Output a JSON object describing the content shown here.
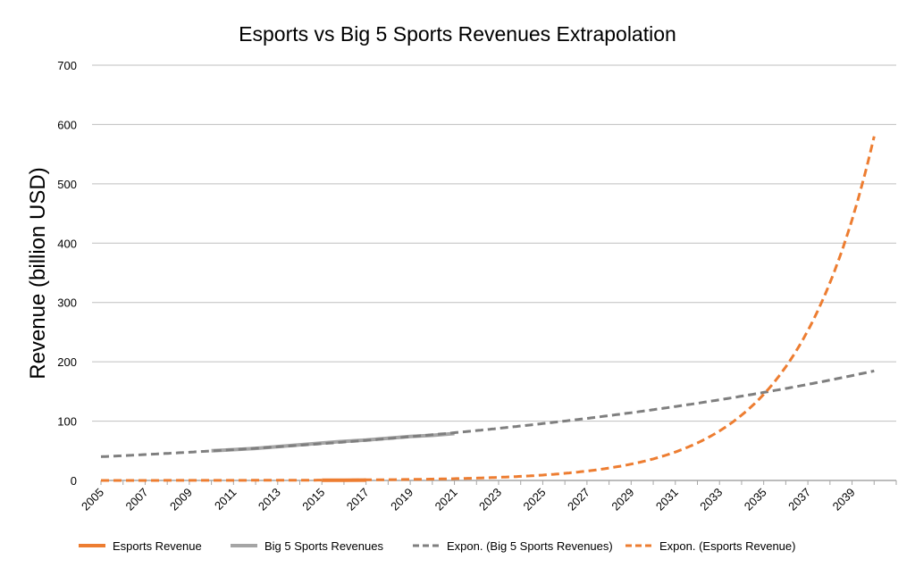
{
  "chart_data": {
    "type": "line",
    "title": "Esports vs Big 5 Sports Revenues Extrapolation",
    "xlabel": "",
    "ylabel": "Revenue (billion USD)",
    "ylim": [
      0,
      700
    ],
    "yticks": [
      0,
      100,
      200,
      300,
      400,
      500,
      600,
      700
    ],
    "xlim": [
      2005,
      2041
    ],
    "xtick_labels": [
      "2005",
      "2007",
      "2009",
      "2011",
      "2013",
      "2015",
      "2017",
      "2019",
      "2021",
      "2023",
      "2025",
      "2027",
      "2029",
      "2031",
      "2033",
      "2035",
      "2037",
      "2039"
    ],
    "grid": "horizontal",
    "legend_placement": "bottom",
    "series": [
      {
        "name": "Esports Revenue",
        "color": "#ed7d31",
        "style": "solid",
        "x": [
          2015,
          2016,
          2017
        ],
        "y": [
          0.33,
          0.49,
          0.66
        ]
      },
      {
        "name": "Big 5 Sports Revenues",
        "color": "#a5a5a5",
        "style": "solid",
        "x": [
          2010,
          2011,
          2012,
          2013,
          2014,
          2015,
          2016,
          2017,
          2018,
          2019,
          2020,
          2021
        ],
        "y": [
          50,
          52,
          54,
          57,
          60,
          63,
          66,
          68,
          71,
          74,
          76,
          79
        ]
      },
      {
        "name": "Expon. (Big 5 Sports Revenues)",
        "color": "#7f7f7f",
        "style": "dashed",
        "trend": {
          "a": 40,
          "k": 0.0437,
          "x0": 2005,
          "from": 2005,
          "to": 2040
        }
      },
      {
        "name": "Expon. (Esports Revenue)",
        "color": "#ed7d31",
        "style": "dashed",
        "trend": {
          "a": 580,
          "k": 0.277,
          "x0": 2040,
          "from": 2005,
          "to": 2040
        }
      }
    ]
  }
}
